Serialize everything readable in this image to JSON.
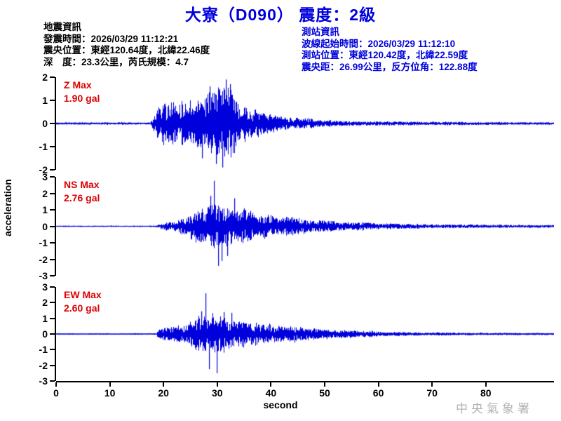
{
  "title": "大寮（D090） 震度：2級",
  "event_info": {
    "heading": "地震資訊",
    "lines": [
      "發震時間：2026/03/29 11:12:21",
      "震央位置：東經120.64度，北緯22.46度",
      "深　度：23.3公里，芮氏規模：4.7"
    ]
  },
  "station_info": {
    "heading": "測站資訊",
    "lines": [
      "波線起始時間：2026/03/29 11:12:10",
      "測站位置：東經120.42度，北緯22.59度",
      "震央距：26.99公里，反方位角：122.88度"
    ]
  },
  "ylabel": "acceleration",
  "xlabel": "second",
  "watermark": "中央氣象署",
  "colors": {
    "trace": "#0000dd",
    "title": "#0000dd",
    "max_label": "#dd0000",
    "axis": "#000000",
    "watermark": "#b3b3b3"
  },
  "chart_data": {
    "type": "line",
    "subtype": "seismogram-3-channel",
    "x_unit": "second",
    "x_range": [
      0,
      92.6
    ],
    "x_ticks": [
      0,
      10,
      20,
      30,
      40,
      50,
      60,
      70,
      80
    ],
    "y_unit": "gal",
    "channels": [
      {
        "name": "Z",
        "max_label": "Z Max",
        "max_value_label": "1.90 gal",
        "max_gal": 1.9,
        "y_range": [
          -2,
          2
        ],
        "y_ticks": [
          2,
          1,
          0,
          -1,
          -2
        ],
        "seed": 11,
        "onset_s": 18,
        "envelope": [
          [
            0,
            0.05
          ],
          [
            17.5,
            0.05
          ],
          [
            18,
            0.25
          ],
          [
            19,
            0.85
          ],
          [
            20,
            1.0
          ],
          [
            21,
            0.9
          ],
          [
            22,
            0.95
          ],
          [
            23,
            0.9
          ],
          [
            24,
            1.0
          ],
          [
            25,
            0.95
          ],
          [
            26,
            1.05
          ],
          [
            27,
            1.1
          ],
          [
            28,
            1.35
          ],
          [
            29,
            1.45
          ],
          [
            30,
            1.5
          ],
          [
            31,
            1.55
          ],
          [
            32,
            1.45
          ],
          [
            33,
            1.3
          ],
          [
            34,
            0.9
          ],
          [
            35,
            0.65
          ],
          [
            36,
            0.6
          ],
          [
            37,
            0.55
          ],
          [
            38,
            0.5
          ],
          [
            39,
            0.42
          ],
          [
            40,
            0.38
          ],
          [
            42,
            0.3
          ],
          [
            44,
            0.24
          ],
          [
            46,
            0.2
          ],
          [
            47,
            0.26
          ],
          [
            48,
            0.18
          ],
          [
            50,
            0.14
          ],
          [
            52,
            0.12
          ],
          [
            55,
            0.1
          ],
          [
            58,
            0.09
          ],
          [
            62,
            0.08
          ],
          [
            66,
            0.08
          ],
          [
            70,
            0.07
          ],
          [
            75,
            0.07
          ],
          [
            80,
            0.06
          ],
          [
            86,
            0.06
          ],
          [
            93,
            0.05
          ]
        ],
        "spikes": [
          [
            27.2,
            -1.5
          ],
          [
            28.6,
            1.6
          ],
          [
            29.8,
            -1.75
          ],
          [
            30.9,
            -1.9
          ],
          [
            31.6,
            1.9
          ],
          [
            32.4,
            1.7
          ]
        ]
      },
      {
        "name": "NS",
        "max_label": "NS Max",
        "max_value_label": "2.76 gal",
        "max_gal": 2.76,
        "y_range": [
          -3,
          3
        ],
        "y_ticks": [
          3,
          2,
          1,
          0,
          -1,
          -2,
          -3
        ],
        "seed": 23,
        "onset_s": 19,
        "envelope": [
          [
            0,
            0.04
          ],
          [
            18.5,
            0.04
          ],
          [
            19,
            0.12
          ],
          [
            20,
            0.2
          ],
          [
            21,
            0.25
          ],
          [
            22,
            0.3
          ],
          [
            23,
            0.4
          ],
          [
            24,
            0.55
          ],
          [
            25,
            0.75
          ],
          [
            26,
            0.95
          ],
          [
            27,
            1.05
          ],
          [
            28,
            1.15
          ],
          [
            29,
            1.3
          ],
          [
            30,
            1.25
          ],
          [
            31,
            1.1
          ],
          [
            32,
            1.15
          ],
          [
            33,
            1.05
          ],
          [
            34,
            0.95
          ],
          [
            35,
            0.9
          ],
          [
            36,
            0.85
          ],
          [
            37,
            0.8
          ],
          [
            38,
            0.72
          ],
          [
            39,
            0.68
          ],
          [
            40,
            0.62
          ],
          [
            42,
            0.55
          ],
          [
            44,
            0.48
          ],
          [
            46,
            0.42
          ],
          [
            48,
            0.38
          ],
          [
            50,
            0.33
          ],
          [
            52,
            0.3
          ],
          [
            55,
            0.26
          ],
          [
            58,
            0.22
          ],
          [
            61,
            0.19
          ],
          [
            64,
            0.16
          ],
          [
            68,
            0.14
          ],
          [
            72,
            0.12
          ],
          [
            76,
            0.11
          ],
          [
            80,
            0.1
          ],
          [
            85,
            0.09
          ],
          [
            93,
            0.08
          ]
        ],
        "spikes": [
          [
            28.7,
            1.85
          ],
          [
            29.4,
            2.76
          ],
          [
            30.1,
            -2.4
          ],
          [
            30.8,
            -2.1
          ],
          [
            31.9,
            -1.8
          ],
          [
            33.1,
            1.7
          ]
        ]
      },
      {
        "name": "EW",
        "max_label": "EW Max",
        "max_value_label": "2.60 gal",
        "max_gal": 2.6,
        "y_range": [
          -3,
          3
        ],
        "y_ticks": [
          3,
          2,
          1,
          0,
          -1,
          -2,
          -3
        ],
        "seed": 37,
        "onset_s": 19,
        "envelope": [
          [
            0,
            0.04
          ],
          [
            18.5,
            0.04
          ],
          [
            19,
            0.28
          ],
          [
            20,
            0.38
          ],
          [
            21,
            0.42
          ],
          [
            22,
            0.46
          ],
          [
            23,
            0.5
          ],
          [
            24,
            0.58
          ],
          [
            25,
            0.75
          ],
          [
            26,
            0.95
          ],
          [
            27,
            1.15
          ],
          [
            28,
            1.25
          ],
          [
            29,
            1.15
          ],
          [
            30,
            1.05
          ],
          [
            31,
            1.0
          ],
          [
            32,
            0.95
          ],
          [
            33,
            0.9
          ],
          [
            34,
            0.85
          ],
          [
            35,
            0.8
          ],
          [
            36,
            0.75
          ],
          [
            37,
            0.7
          ],
          [
            38,
            0.65
          ],
          [
            39,
            0.6
          ],
          [
            40,
            0.56
          ],
          [
            42,
            0.5
          ],
          [
            44,
            0.45
          ],
          [
            46,
            0.4
          ],
          [
            48,
            0.36
          ],
          [
            50,
            0.32
          ],
          [
            52,
            0.28
          ],
          [
            54,
            0.24
          ],
          [
            56,
            0.2
          ],
          [
            58,
            0.17
          ],
          [
            60,
            0.15
          ],
          [
            63,
            0.13
          ],
          [
            66,
            0.11
          ],
          [
            70,
            0.1
          ],
          [
            75,
            0.09
          ],
          [
            80,
            0.08
          ],
          [
            86,
            0.07
          ],
          [
            93,
            0.06
          ]
        ],
        "spikes": [
          [
            27.0,
            1.45
          ],
          [
            27.8,
            2.6
          ],
          [
            28.5,
            -2.25
          ],
          [
            29.9,
            -2.5
          ],
          [
            31.2,
            1.4
          ],
          [
            32.6,
            1.35
          ]
        ]
      }
    ]
  }
}
